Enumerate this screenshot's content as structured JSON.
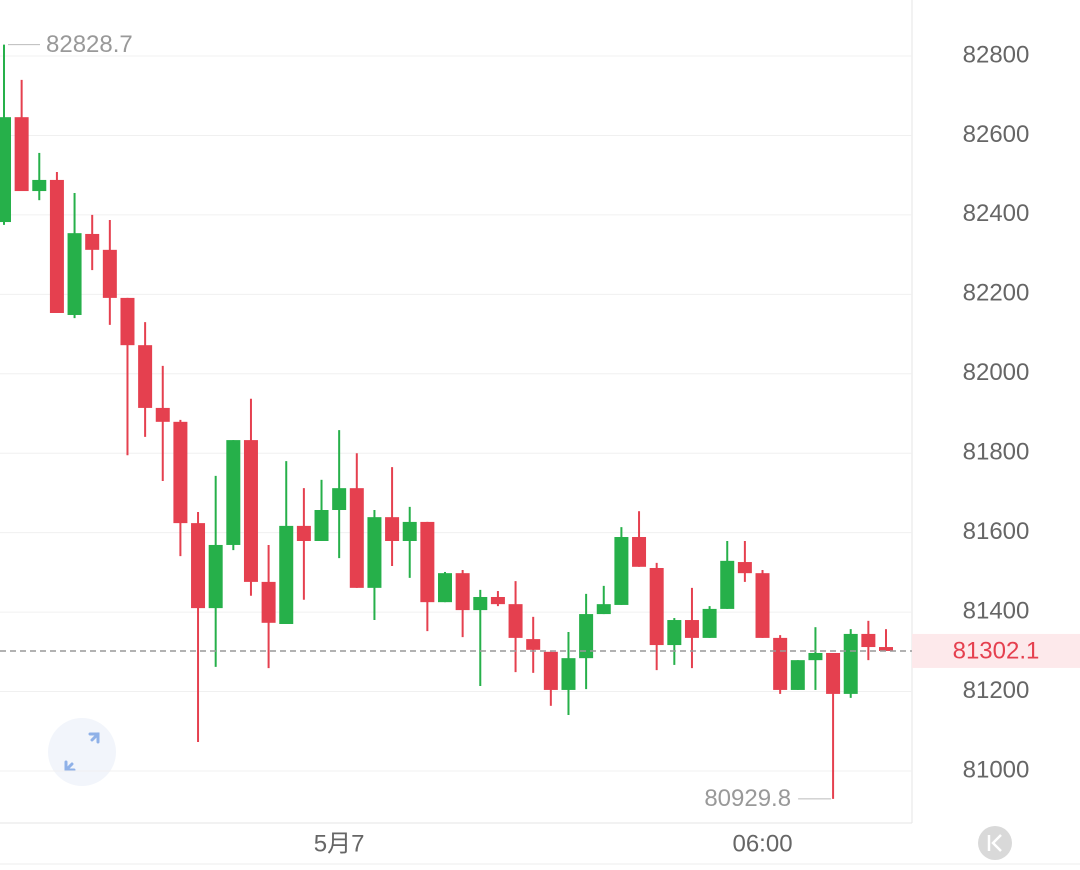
{
  "chart_data": {
    "type": "candlestick",
    "categories": [
      null,
      null,
      null,
      null,
      null,
      null,
      null,
      null,
      null,
      null,
      null,
      null,
      null,
      null,
      null,
      null,
      null,
      null,
      null,
      "5月7",
      null,
      null,
      null,
      null,
      null,
      null,
      null,
      null,
      null,
      null,
      null,
      null,
      null,
      null,
      null,
      null,
      null,
      null,
      null,
      null,
      null,
      null,
      null,
      "06:00",
      null,
      null,
      null,
      null,
      null,
      null,
      null
    ],
    "open": [
      82382,
      82646,
      82460,
      82488,
      82148,
      82352,
      82312,
      82191,
      82072,
      81914,
      81879,
      81624,
      81410,
      81569,
      81833,
      81476,
      81370,
      81617,
      81579,
      81657,
      81712,
      81461,
      81639,
      81579,
      81627,
      81425,
      81498,
      81405,
      81438,
      81420,
      81332,
      81300,
      81204,
      81284,
      81395,
      81418,
      81589,
      81511,
      81317,
      81380,
      81335,
      81408,
      81526,
      81498,
      81335,
      81204,
      81279,
      81297,
      81194,
      81345,
      81312
    ],
    "high": [
      82828.7,
      82740,
      82556,
      82508,
      82455,
      82400,
      82387,
      82191,
      82130,
      82020,
      81884,
      81652,
      81743,
      81833,
      81937,
      81569,
      81780,
      81712,
      81733,
      81858,
      81800,
      81657,
      81765,
      81665,
      81627,
      81501,
      81506,
      81456,
      81453,
      81478,
      81388,
      81300,
      81350,
      81446,
      81466,
      81614,
      81654,
      81524,
      81385,
      81461,
      81415,
      81579,
      81579,
      81506,
      81342,
      81279,
      81362,
      81297,
      81357,
      81378,
      81357
    ],
    "low": [
      82375,
      82460,
      82437,
      82153,
      82140,
      82261,
      82123,
      81795,
      81841,
      81730,
      81541,
      81073,
      81262,
      81556,
      81441,
      81259,
      81370,
      81431,
      81579,
      81536,
      81461,
      81380,
      81516,
      81486,
      81352,
      81425,
      81337,
      81214,
      81415,
      81249,
      81247,
      81164,
      81141,
      81206,
      81395,
      81418,
      81514,
      81254,
      81267,
      81259,
      81335,
      81408,
      81476,
      81335,
      81194,
      81204,
      81204,
      80929.8,
      81184,
      81279,
      81302.1
    ],
    "close": [
      82646,
      82460,
      82488,
      82153,
      82354,
      82312,
      82191,
      82072,
      81914,
      81879,
      81624,
      81410,
      81569,
      81833,
      81476,
      81373,
      81617,
      81579,
      81657,
      81712,
      81461,
      81639,
      81579,
      81627,
      81425,
      81498,
      81405,
      81438,
      81420,
      81335,
      81305,
      81204,
      81284,
      81395,
      81420,
      81589,
      81514,
      81317,
      81380,
      81335,
      81408,
      81529,
      81498,
      81335,
      81204,
      81279,
      81297,
      81194,
      81345,
      81312,
      81302.1
    ],
    "up_color": "#26b04a",
    "down_color": "#e5404f",
    "ylim": [
      80869,
      82941
    ],
    "yticks": [
      81000,
      81200,
      81400,
      81600,
      81800,
      82000,
      82200,
      82400,
      82600,
      82800
    ],
    "grid": true
  }
}
